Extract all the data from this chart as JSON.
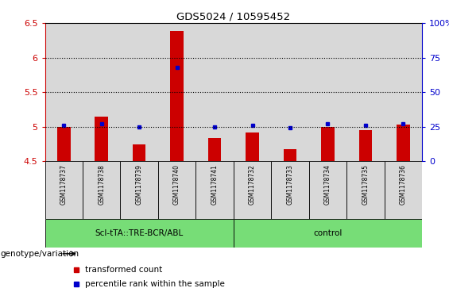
{
  "title": "GDS5024 / 10595452",
  "samples": [
    "GSM1178737",
    "GSM1178738",
    "GSM1178739",
    "GSM1178740",
    "GSM1178741",
    "GSM1178732",
    "GSM1178733",
    "GSM1178734",
    "GSM1178735",
    "GSM1178736"
  ],
  "transformed_count": [
    5.0,
    5.15,
    4.75,
    6.38,
    4.84,
    4.92,
    4.68,
    5.0,
    4.95,
    5.03
  ],
  "percentile_rank": [
    26,
    27,
    25,
    68,
    25,
    26,
    24,
    27,
    26,
    27
  ],
  "ylim": [
    4.5,
    6.5
  ],
  "yticks": [
    4.5,
    5.0,
    5.5,
    6.0,
    6.5
  ],
  "ytick_labels": [
    "4.5",
    "5",
    "5.5",
    "6",
    "6.5"
  ],
  "right_yticks": [
    0,
    25,
    50,
    75,
    100
  ],
  "right_ytick_labels": [
    "0",
    "25",
    "50",
    "75",
    "100%"
  ],
  "bar_color": "#cc0000",
  "dot_color": "#0000cc",
  "bar_width": 0.35,
  "group1_label": "Scl-tTA::TRE-BCR/ABL",
  "group2_label": "control",
  "group1_count": 5,
  "group2_count": 5,
  "genotype_label": "genotype/variation",
  "legend_bar_label": "transformed count",
  "legend_dot_label": "percentile rank within the sample",
  "dotted_grid_values": [
    5.0,
    5.5,
    6.0
  ],
  "col_bg_color": "#d8d8d8",
  "group_bg": "#77dd77",
  "sample_box_bg": "#d8d8d8",
  "plot_bg": "#ffffff"
}
